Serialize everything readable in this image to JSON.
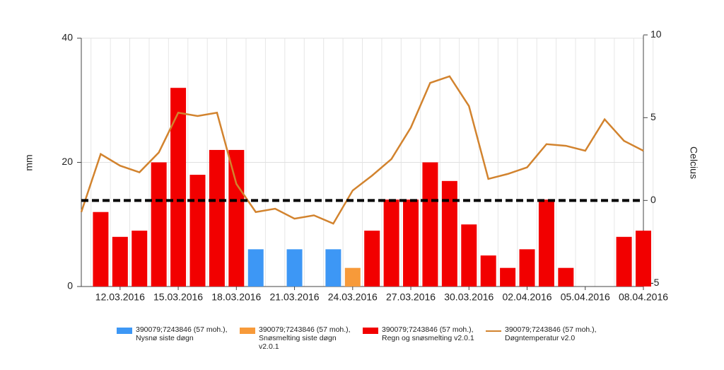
{
  "chart_data": {
    "type": "bar_line",
    "y_label": "mm",
    "y2_label": "Celcius",
    "categories": [
      null,
      null,
      "12.03.2016",
      null,
      null,
      "15.03.2016",
      null,
      null,
      "18.03.2016",
      null,
      null,
      "21.03.2016",
      null,
      null,
      "24.03.2016",
      null,
      null,
      "27.03.2016",
      null,
      null,
      "30.03.2016",
      null,
      null,
      "02.04.2016",
      null,
      null,
      "05.04.2016",
      null,
      null,
      "08.04.2016"
    ],
    "series": [
      {
        "name": "390079;7243846 (57 moh.), Nysnø siste døgn",
        "color": "#3d97f5",
        "type": "bar",
        "values": [
          null,
          null,
          null,
          null,
          null,
          null,
          null,
          null,
          null,
          6,
          null,
          6,
          null,
          6,
          null,
          null,
          null,
          null,
          null,
          null,
          null,
          null,
          null,
          null,
          null,
          null,
          null,
          null,
          null,
          null
        ]
      },
      {
        "name": "390079;7243846 (57 moh.), Snøsmelting siste døgn v2.0.1",
        "color": "#f79a3a",
        "type": "bar",
        "values": [
          null,
          null,
          null,
          null,
          null,
          null,
          null,
          null,
          null,
          null,
          null,
          null,
          null,
          null,
          3,
          null,
          null,
          null,
          null,
          null,
          null,
          null,
          null,
          null,
          null,
          null,
          null,
          null,
          null,
          null
        ]
      },
      {
        "name": "390079;7243846 (57 moh.), Regn og snøsmelting v2.0.1",
        "color": "#f20000",
        "type": "bar",
        "values": [
          null,
          12,
          8,
          9,
          20,
          32,
          18,
          22,
          22,
          null,
          null,
          null,
          null,
          null,
          null,
          9,
          14,
          14,
          20,
          17,
          10,
          5,
          3,
          6,
          14,
          3,
          null,
          null,
          8,
          9
        ]
      },
      {
        "name": "390079;7243846 (57 moh.), Døgntemperatur v2.0",
        "color": "#d2832e",
        "type": "line",
        "axis": "y2",
        "values": [
          -0.7,
          2.8,
          2.1,
          1.7,
          2.9,
          5.3,
          5.1,
          5.3,
          1.0,
          -0.7,
          -0.5,
          -1.1,
          -0.9,
          -1.4,
          0.6,
          1.5,
          2.5,
          4.4,
          7.1,
          7.5,
          5.7,
          1.3,
          1.6,
          2.0,
          3.4,
          3.3,
          3.0,
          4.9,
          3.6,
          3.0
        ]
      }
    ],
    "reference_line": {
      "axis": "y2",
      "value": 0
    },
    "ylim": [
      0,
      40
    ],
    "yticks": [
      0,
      20,
      40
    ],
    "y2lim": [
      -5.2,
      9.8
    ],
    "y2ticks": [
      -5,
      0,
      5,
      10
    ],
    "grid": true
  }
}
